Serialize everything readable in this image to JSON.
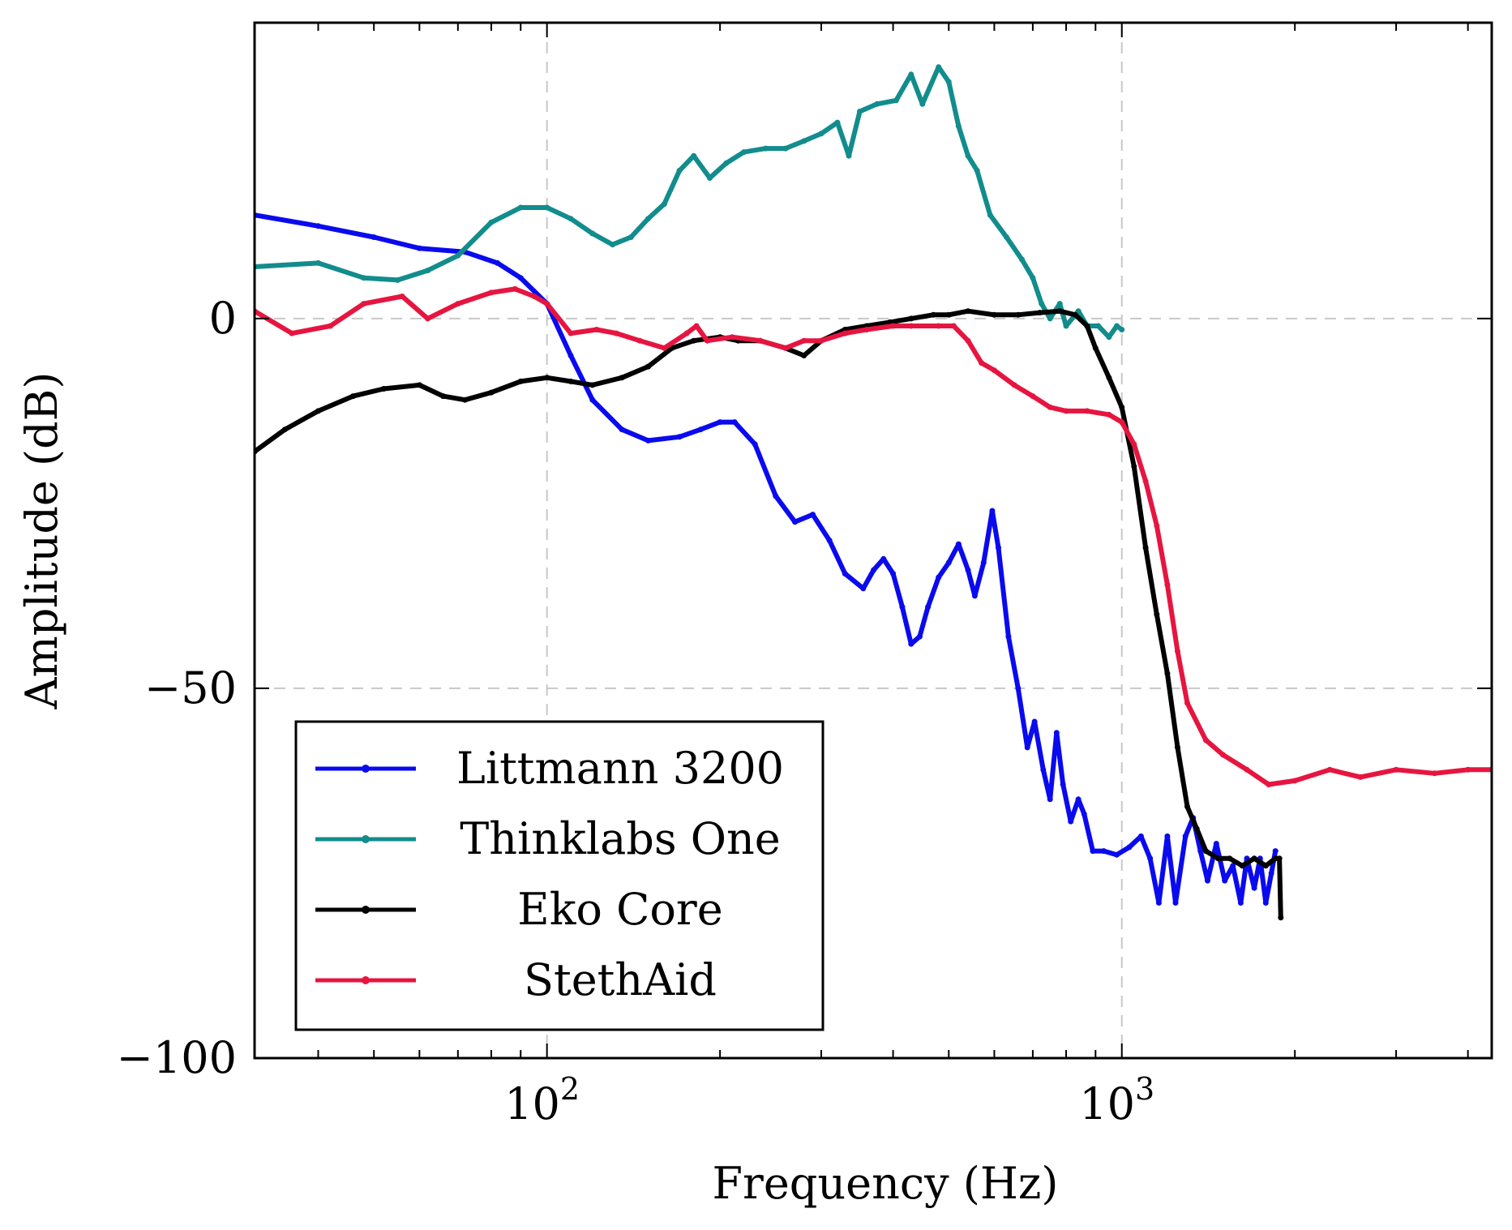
{
  "chart_data": {
    "type": "line",
    "xscale": "log",
    "xlabel": "Frequency (Hz)",
    "ylabel": "Amplitude (dB)",
    "xlim": [
      31,
      4400
    ],
    "ylim": [
      -100,
      40
    ],
    "grid": true,
    "legend_position": "bottom-left",
    "x_ticks": [
      {
        "value": 100,
        "base": "10",
        "exp": "2"
      },
      {
        "value": 1000,
        "base": "10",
        "exp": "3"
      }
    ],
    "y_ticks": [
      {
        "value": 0,
        "label": "0"
      },
      {
        "value": -50,
        "label": "−50"
      },
      {
        "value": -100,
        "label": "−100"
      }
    ],
    "series": [
      {
        "name": "Littmann 3200",
        "color": "#0a0aef",
        "points": [
          [
            31,
            14
          ],
          [
            40,
            12.5
          ],
          [
            50,
            11
          ],
          [
            60,
            9.5
          ],
          [
            72,
            9
          ],
          [
            82,
            7.5
          ],
          [
            90,
            5.5
          ],
          [
            100,
            2
          ],
          [
            110,
            -5
          ],
          [
            120,
            -11
          ],
          [
            135,
            -15
          ],
          [
            150,
            -16.5
          ],
          [
            170,
            -16
          ],
          [
            185,
            -15
          ],
          [
            200,
            -14
          ],
          [
            212,
            -14
          ],
          [
            230,
            -17
          ],
          [
            250,
            -24
          ],
          [
            270,
            -27.5
          ],
          [
            290,
            -26.5
          ],
          [
            310,
            -30
          ],
          [
            330,
            -34.5
          ],
          [
            355,
            -36.5
          ],
          [
            370,
            -34
          ],
          [
            385,
            -32.5
          ],
          [
            400,
            -34.5
          ],
          [
            415,
            -39
          ],
          [
            430,
            -44
          ],
          [
            445,
            -43
          ],
          [
            460,
            -39
          ],
          [
            480,
            -35
          ],
          [
            500,
            -33
          ],
          [
            520,
            -30.5
          ],
          [
            540,
            -34
          ],
          [
            555,
            -37.5
          ],
          [
            575,
            -33
          ],
          [
            595,
            -26
          ],
          [
            610,
            -31
          ],
          [
            635,
            -43
          ],
          [
            660,
            -50
          ],
          [
            685,
            -58
          ],
          [
            705,
            -54.5
          ],
          [
            730,
            -61
          ],
          [
            750,
            -65
          ],
          [
            770,
            -56
          ],
          [
            790,
            -63
          ],
          [
            815,
            -68
          ],
          [
            840,
            -65
          ],
          [
            860,
            -67
          ],
          [
            890,
            -72
          ],
          [
            930,
            -72
          ],
          [
            980,
            -72.5
          ],
          [
            1030,
            -71.5
          ],
          [
            1080,
            -70
          ],
          [
            1120,
            -73
          ],
          [
            1160,
            -79
          ],
          [
            1200,
            -70
          ],
          [
            1240,
            -79
          ],
          [
            1290,
            -70
          ],
          [
            1330,
            -67.5
          ],
          [
            1370,
            -72
          ],
          [
            1410,
            -76
          ],
          [
            1460,
            -71
          ],
          [
            1510,
            -76
          ],
          [
            1560,
            -74
          ],
          [
            1610,
            -79
          ],
          [
            1650,
            -73
          ],
          [
            1700,
            -77
          ],
          [
            1740,
            -73
          ],
          [
            1780,
            -79
          ],
          [
            1820,
            -75
          ],
          [
            1850,
            -72
          ]
        ]
      },
      {
        "name": "Thinklabs One",
        "color": "#128c8c",
        "points": [
          [
            31,
            7
          ],
          [
            40,
            7.5
          ],
          [
            48,
            5.5
          ],
          [
            55,
            5.2
          ],
          [
            62,
            6.5
          ],
          [
            70,
            8.5
          ],
          [
            80,
            13
          ],
          [
            90,
            15
          ],
          [
            100,
            15
          ],
          [
            110,
            13.5
          ],
          [
            120,
            11.5
          ],
          [
            130,
            10
          ],
          [
            140,
            11
          ],
          [
            150,
            13.5
          ],
          [
            160,
            15.5
          ],
          [
            170,
            20
          ],
          [
            180,
            22
          ],
          [
            192,
            19
          ],
          [
            205,
            21
          ],
          [
            220,
            22.5
          ],
          [
            240,
            23
          ],
          [
            260,
            23
          ],
          [
            280,
            24
          ],
          [
            300,
            25
          ],
          [
            320,
            26.5
          ],
          [
            335,
            22
          ],
          [
            350,
            28
          ],
          [
            375,
            29
          ],
          [
            405,
            29.5
          ],
          [
            430,
            33
          ],
          [
            450,
            29
          ],
          [
            480,
            34
          ],
          [
            500,
            32
          ],
          [
            520,
            26
          ],
          [
            540,
            22
          ],
          [
            560,
            20
          ],
          [
            590,
            14
          ],
          [
            630,
            11
          ],
          [
            670,
            8
          ],
          [
            700,
            5.5
          ],
          [
            725,
            2
          ],
          [
            750,
            0
          ],
          [
            780,
            2
          ],
          [
            800,
            -1
          ],
          [
            840,
            1
          ],
          [
            870,
            -1
          ],
          [
            910,
            -1
          ],
          [
            950,
            -2.5
          ],
          [
            980,
            -1
          ],
          [
            1000,
            -1.5
          ]
        ]
      },
      {
        "name": "Eko Core",
        "color": "#000000",
        "points": [
          [
            31,
            -18
          ],
          [
            35,
            -15
          ],
          [
            40,
            -12.5
          ],
          [
            46,
            -10.5
          ],
          [
            52,
            -9.5
          ],
          [
            60,
            -9
          ],
          [
            66,
            -10.5
          ],
          [
            72,
            -11
          ],
          [
            80,
            -10
          ],
          [
            90,
            -8.5
          ],
          [
            100,
            -8
          ],
          [
            110,
            -8.5
          ],
          [
            120,
            -9
          ],
          [
            135,
            -8
          ],
          [
            150,
            -6.5
          ],
          [
            165,
            -4
          ],
          [
            180,
            -3
          ],
          [
            200,
            -2.5
          ],
          [
            215,
            -3
          ],
          [
            235,
            -3
          ],
          [
            260,
            -4
          ],
          [
            280,
            -5
          ],
          [
            300,
            -3
          ],
          [
            330,
            -1.5
          ],
          [
            360,
            -1
          ],
          [
            395,
            -0.5
          ],
          [
            430,
            0
          ],
          [
            470,
            0.5
          ],
          [
            500,
            0.5
          ],
          [
            540,
            1
          ],
          [
            600,
            0.5
          ],
          [
            660,
            0.5
          ],
          [
            720,
            0.8
          ],
          [
            780,
            1
          ],
          [
            830,
            0.5
          ],
          [
            870,
            -1
          ],
          [
            900,
            -4
          ],
          [
            950,
            -8
          ],
          [
            1000,
            -12
          ],
          [
            1050,
            -20
          ],
          [
            1100,
            -31
          ],
          [
            1150,
            -40
          ],
          [
            1200,
            -48
          ],
          [
            1250,
            -58
          ],
          [
            1300,
            -66
          ],
          [
            1350,
            -69
          ],
          [
            1400,
            -72
          ],
          [
            1470,
            -73
          ],
          [
            1540,
            -73
          ],
          [
            1620,
            -74
          ],
          [
            1700,
            -73
          ],
          [
            1780,
            -74
          ],
          [
            1850,
            -73
          ],
          [
            1880,
            -73
          ],
          [
            1890,
            -81
          ]
        ]
      },
      {
        "name": "StethAid",
        "color": "#e61540",
        "points": [
          [
            31,
            1
          ],
          [
            36,
            -2
          ],
          [
            42,
            -1
          ],
          [
            48,
            2
          ],
          [
            56,
            3
          ],
          [
            62,
            0
          ],
          [
            70,
            2
          ],
          [
            80,
            3.5
          ],
          [
            88,
            4
          ],
          [
            95,
            3
          ],
          [
            100,
            2
          ],
          [
            110,
            -2
          ],
          [
            122,
            -1.5
          ],
          [
            132,
            -2
          ],
          [
            145,
            -3
          ],
          [
            160,
            -4
          ],
          [
            175,
            -2
          ],
          [
            182,
            -1
          ],
          [
            190,
            -3
          ],
          [
            210,
            -2.5
          ],
          [
            235,
            -3
          ],
          [
            260,
            -4
          ],
          [
            280,
            -3
          ],
          [
            300,
            -3
          ],
          [
            330,
            -2
          ],
          [
            360,
            -1.5
          ],
          [
            400,
            -1
          ],
          [
            430,
            -1
          ],
          [
            480,
            -1
          ],
          [
            510,
            -1
          ],
          [
            540,
            -3
          ],
          [
            570,
            -6
          ],
          [
            600,
            -7
          ],
          [
            650,
            -9
          ],
          [
            700,
            -10.5
          ],
          [
            750,
            -12
          ],
          [
            800,
            -12.5
          ],
          [
            870,
            -12.5
          ],
          [
            950,
            -13
          ],
          [
            1000,
            -14
          ],
          [
            1050,
            -17
          ],
          [
            1100,
            -22
          ],
          [
            1150,
            -28
          ],
          [
            1200,
            -36
          ],
          [
            1250,
            -45
          ],
          [
            1300,
            -52
          ],
          [
            1400,
            -57
          ],
          [
            1500,
            -59
          ],
          [
            1650,
            -61
          ],
          [
            1800,
            -63
          ],
          [
            2000,
            -62.5
          ],
          [
            2300,
            -61
          ],
          [
            2600,
            -62
          ],
          [
            3000,
            -61
          ],
          [
            3500,
            -61.5
          ],
          [
            4000,
            -61
          ],
          [
            4400,
            -61
          ]
        ]
      }
    ]
  }
}
